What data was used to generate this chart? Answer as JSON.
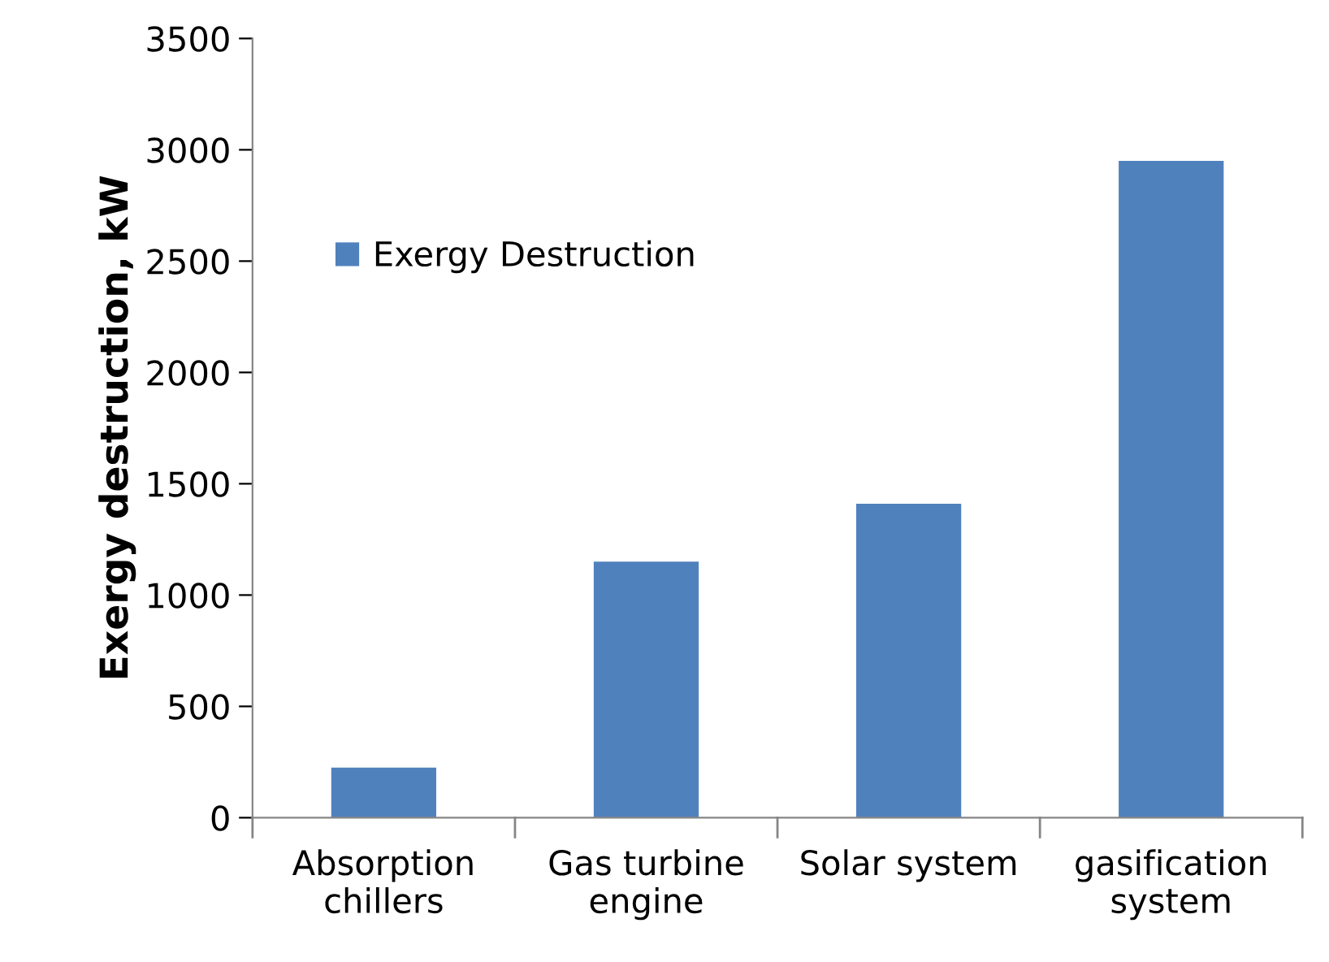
{
  "chart_data": {
    "type": "bar",
    "ylabel": "Exergy destruction, kW",
    "categories": [
      "Absorption chillers",
      "Gas turbine engine",
      "Solar system",
      "gasification system"
    ],
    "series": [
      {
        "name": "Exergy Destruction",
        "color": "#4f81bd",
        "values": [
          225,
          1150,
          1410,
          2950
        ]
      }
    ],
    "ylim": [
      0,
      3500
    ],
    "yticks": [
      0,
      500,
      1000,
      1500,
      2000,
      2500,
      3000,
      3500
    ],
    "grid": false,
    "legend": "top left"
  }
}
